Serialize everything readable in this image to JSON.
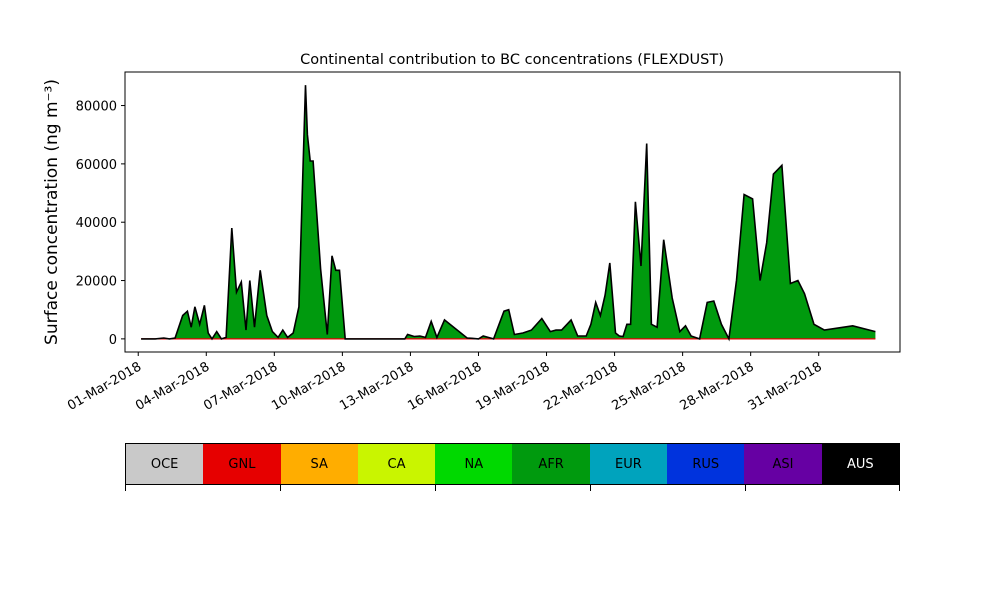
{
  "chart_data": {
    "type": "area",
    "title": "Continental contribution to BC concentrations (FLEXDUST)",
    "xlabel": "",
    "ylabel": "Surface concentration (ng m⁻³)",
    "ylim": [
      -4500,
      91500
    ],
    "xlim": [
      "2018-02-28T10:00",
      "2018-04-03T14:00"
    ],
    "yticks": [
      0,
      20000,
      40000,
      60000,
      80000
    ],
    "xticks": [
      "01-Mar-2018",
      "04-Mar-2018",
      "07-Mar-2018",
      "10-Mar-2018",
      "13-Mar-2018",
      "16-Mar-2018",
      "19-Mar-2018",
      "22-Mar-2018",
      "25-Mar-2018",
      "28-Mar-2018",
      "31-Mar-2018"
    ],
    "dominant_series": "AFR",
    "fill_color": "#009a0e",
    "line_color": "#000000",
    "series": [
      {
        "name": "AFR",
        "x": [
          "2018-03-01T03:00",
          "2018-03-01T18:00",
          "2018-03-02T03:00",
          "2018-03-02T09:00",
          "2018-03-02T15:00",
          "2018-03-02T23:00",
          "2018-03-03T04:00",
          "2018-03-03T08:00",
          "2018-03-03T12:00",
          "2018-03-03T17:00",
          "2018-03-03T22:00",
          "2018-03-04T02:00",
          "2018-03-04T06:00",
          "2018-03-04T11:00",
          "2018-03-04T16:00",
          "2018-03-04T21:00",
          "2018-03-05T03:00",
          "2018-03-05T08:00",
          "2018-03-05T13:00",
          "2018-03-05T18:00",
          "2018-03-05T22:00",
          "2018-03-06T03:00",
          "2018-03-06T09:00",
          "2018-03-06T16:00",
          "2018-03-06T22:00",
          "2018-03-07T04:00",
          "2018-03-07T09:00",
          "2018-03-07T14:00",
          "2018-03-07T20:00",
          "2018-03-08T02:00",
          "2018-03-08T06:00",
          "2018-03-08T09:00",
          "2018-03-08T11:00",
          "2018-03-08T14:00",
          "2018-03-08T17:00",
          "2018-03-09T01:00",
          "2018-03-09T08:00",
          "2018-03-09T13:00",
          "2018-03-09T17:00",
          "2018-03-09T21:00",
          "2018-03-10T03:00",
          "2018-03-11T00:00",
          "2018-03-12T18:00",
          "2018-03-12T21:00",
          "2018-03-13T04:00",
          "2018-03-13T10:00",
          "2018-03-13T16:00",
          "2018-03-13T22:00",
          "2018-03-14T04:00",
          "2018-03-14T12:00",
          "2018-03-15T12:00",
          "2018-03-15T17:00",
          "2018-03-16T00:00",
          "2018-03-16T05:00",
          "2018-03-16T16:00",
          "2018-03-17T03:00",
          "2018-03-17T08:00",
          "2018-03-17T14:00",
          "2018-03-17T23:00",
          "2018-03-18T08:00",
          "2018-03-18T19:00",
          "2018-03-19T04:00",
          "2018-03-19T10:00",
          "2018-03-19T16:00",
          "2018-03-20T02:00",
          "2018-03-20T09:00",
          "2018-03-20T18:00",
          "2018-03-20T23:00",
          "2018-03-21T04:00",
          "2018-03-21T09:00",
          "2018-03-21T14:00",
          "2018-03-21T19:00",
          "2018-03-22T01:00",
          "2018-03-22T05:00",
          "2018-03-22T09:00",
          "2018-03-22T13:00",
          "2018-03-22T17:00",
          "2018-03-22T22:00",
          "2018-03-23T04:00",
          "2018-03-23T10:00",
          "2018-03-23T15:00",
          "2018-03-23T21:00",
          "2018-03-24T04:00",
          "2018-03-24T13:00",
          "2018-03-24T21:00",
          "2018-03-25T03:00",
          "2018-03-25T09:00",
          "2018-03-25T18:00",
          "2018-03-26T02:00",
          "2018-03-26T09:00",
          "2018-03-26T17:00",
          "2018-03-27T01:00",
          "2018-03-27T09:00",
          "2018-03-27T17:00",
          "2018-03-28T02:00",
          "2018-03-28T10:00",
          "2018-03-28T17:00",
          "2018-03-29T00:00",
          "2018-03-29T09:00",
          "2018-03-29T18:00",
          "2018-03-30T02:00",
          "2018-03-30T09:00",
          "2018-03-30T19:00",
          "2018-03-31T06:00",
          "2018-04-01T12:00",
          "2018-04-02T12:00"
        ],
        "y": [
          0,
          0,
          300,
          0,
          300,
          8000,
          9500,
          4000,
          11000,
          5000,
          11500,
          2000,
          0,
          2500,
          0,
          500,
          38000,
          16000,
          19500,
          3000,
          20000,
          4000,
          23500,
          8000,
          2500,
          500,
          3000,
          500,
          2000,
          11000,
          55000,
          87000,
          70000,
          61000,
          61000,
          24000,
          1500,
          28500,
          23500,
          23500,
          0,
          0,
          0,
          1500,
          800,
          1000,
          500,
          6000,
          500,
          6500,
          300,
          200,
          0,
          1000,
          0,
          9500,
          10000,
          1500,
          2000,
          3000,
          7000,
          2500,
          3000,
          3000,
          6500,
          1000,
          1000,
          5000,
          12500,
          8000,
          15000,
          26000,
          2000,
          1000,
          800,
          5000,
          5000,
          47000,
          25000,
          67000,
          5000,
          4000,
          34000,
          14000,
          2500,
          4500,
          1000,
          0,
          12500,
          13000,
          5000,
          0,
          20000,
          49500,
          48000,
          20000,
          33000,
          56500,
          59500,
          19000,
          20000,
          15500,
          5000,
          3000,
          4500,
          2500
        ],
        "color": "#009a0e"
      }
    ]
  },
  "legend": {
    "items": [
      {
        "label": "OCE",
        "color": "#c9c9c9",
        "text_color": "#000000"
      },
      {
        "label": "GNL",
        "color": "#e60000",
        "text_color": "#000000"
      },
      {
        "label": "SA",
        "color": "#ffad00",
        "text_color": "#000000"
      },
      {
        "label": "CA",
        "color": "#c9f500",
        "text_color": "#000000"
      },
      {
        "label": "NA",
        "color": "#00d900",
        "text_color": "#000000"
      },
      {
        "label": "AFR",
        "color": "#009a0e",
        "text_color": "#000000"
      },
      {
        "label": "EUR",
        "color": "#00a3bd",
        "text_color": "#000000"
      },
      {
        "label": "RUS",
        "color": "#0033dd",
        "text_color": "#000000"
      },
      {
        "label": "ASI",
        "color": "#6600a3",
        "text_color": "#000000"
      },
      {
        "label": "AUS",
        "color": "#000000",
        "text_color": "#ffffff"
      }
    ],
    "tick_fractions": [
      0,
      0.2,
      0.4,
      0.6,
      0.8,
      1.0
    ]
  }
}
